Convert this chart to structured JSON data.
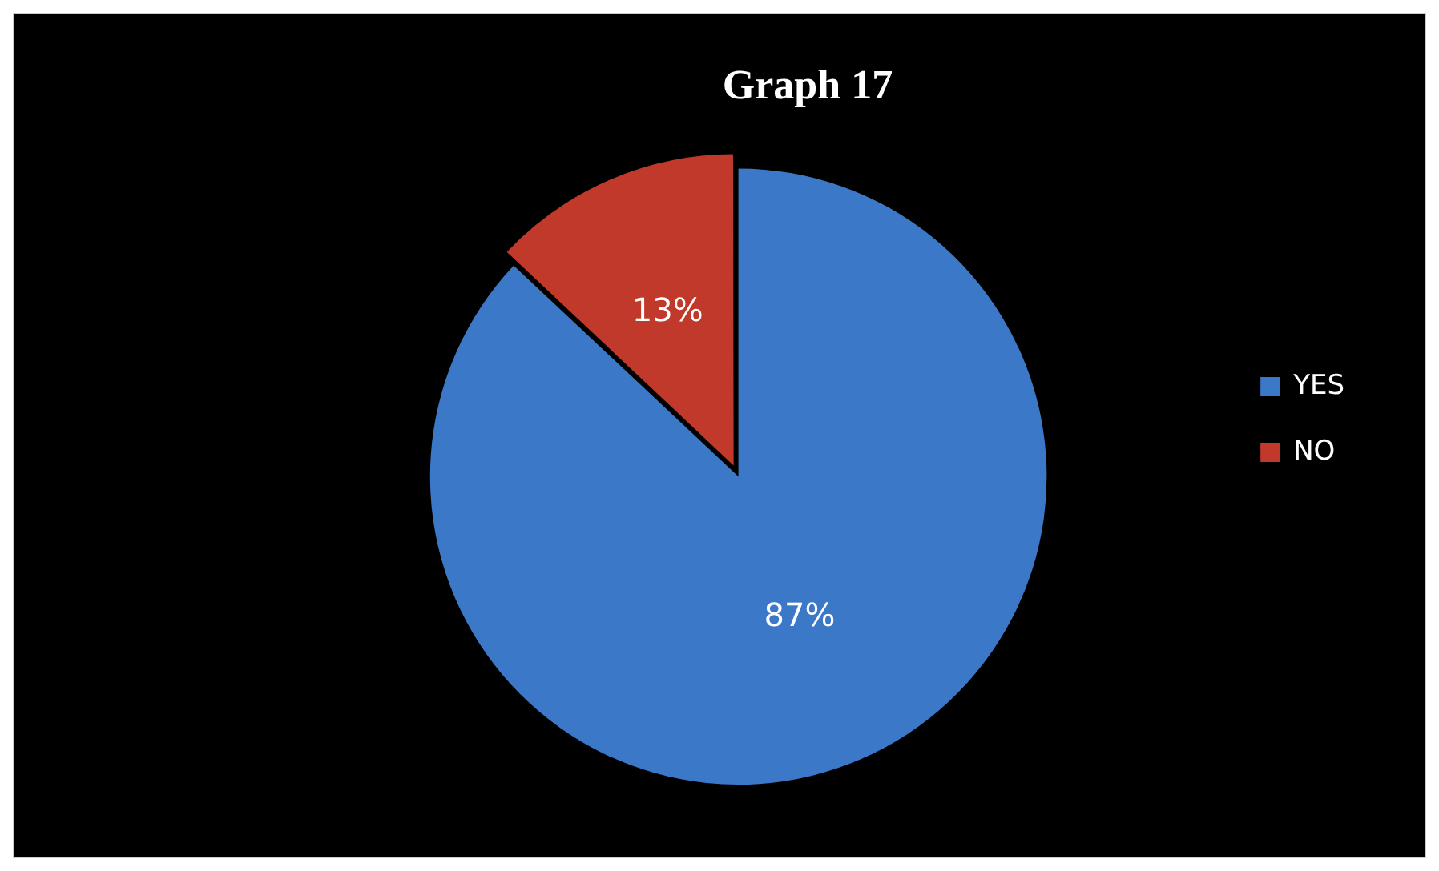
{
  "chart_data": {
    "type": "pie",
    "title": "Graph 17",
    "categories": [
      "YES",
      "NO"
    ],
    "values": [
      87,
      13
    ],
    "colors": [
      "#3b78c8",
      "#c0392b"
    ],
    "value_labels": [
      "87%",
      "13%"
    ],
    "legend": "right"
  }
}
